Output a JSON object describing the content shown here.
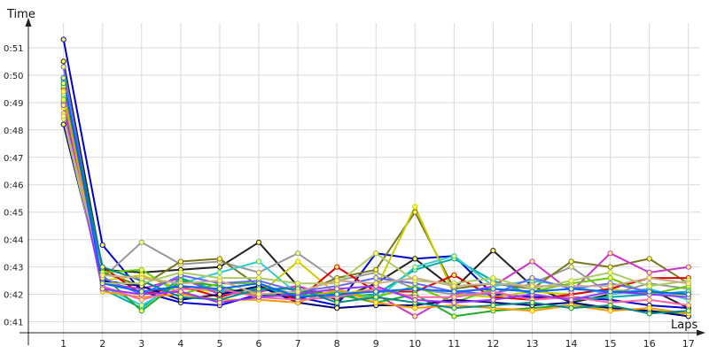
{
  "chart_data": {
    "type": "line",
    "ylabel": "Time",
    "xlabel": "Laps",
    "x": [
      1,
      2,
      3,
      4,
      5,
      6,
      7,
      8,
      9,
      10,
      11,
      12,
      13,
      14,
      15,
      16,
      17
    ],
    "x_ticks": [
      "1",
      "2",
      "3",
      "4",
      "5",
      "6",
      "7",
      "8",
      "9",
      "10",
      "11",
      "12",
      "13",
      "14",
      "15",
      "16",
      "17"
    ],
    "y_ticks": [
      {
        "v": 41,
        "label": "0:41"
      },
      {
        "v": 42,
        "label": "0:42"
      },
      {
        "v": 43,
        "label": "0:43"
      },
      {
        "v": 44,
        "label": "0:44"
      },
      {
        "v": 45,
        "label": "0:45"
      },
      {
        "v": 46,
        "label": "0:46"
      },
      {
        "v": 47,
        "label": "0:47"
      },
      {
        "v": 48,
        "label": "0:48"
      },
      {
        "v": 49,
        "label": "0:49"
      },
      {
        "v": 50,
        "label": "0:50"
      },
      {
        "v": 51,
        "label": "0:51"
      }
    ],
    "ylim": [
      40.6,
      51.9
    ],
    "xlim": [
      0.1,
      17.3
    ],
    "grid": true,
    "marker_fill": "#ffff66",
    "series": [
      {
        "color": "#0000cc",
        "values": [
          51.3,
          43.8,
          42.1,
          41.7,
          41.6,
          42.0,
          41.9,
          41.6,
          43.5,
          43.3,
          43.4,
          42.0,
          41.9,
          41.9,
          41.8,
          41.6,
          41.5
        ]
      },
      {
        "color": "#222222",
        "values": [
          50.5,
          42.9,
          42.8,
          42.9,
          43.0,
          43.9,
          42.3,
          41.8,
          42.4,
          43.3,
          42.2,
          43.6,
          42.3,
          41.7,
          42.0,
          42.2,
          41.5
        ]
      },
      {
        "color": "#999999",
        "values": [
          49.2,
          42.6,
          43.9,
          43.1,
          43.2,
          42.8,
          43.5,
          42.5,
          42.8,
          42.2,
          42.0,
          42.0,
          42.4,
          43.0,
          42.0,
          42.4,
          42.2
        ]
      },
      {
        "color": "#777722",
        "values": [
          49.0,
          42.8,
          42.3,
          43.2,
          43.3,
          42.3,
          42.0,
          42.6,
          42.9,
          45.0,
          42.2,
          42.4,
          42.2,
          43.2,
          43.0,
          43.3,
          42.4
        ]
      },
      {
        "color": "#cccc00",
        "values": [
          48.8,
          42.5,
          42.7,
          42.2,
          42.1,
          42.0,
          43.2,
          42.0,
          42.2,
          45.2,
          42.0,
          41.9,
          42.1,
          42.0,
          42.2,
          42.0,
          42.0
        ]
      },
      {
        "color": "#dd0000",
        "values": [
          49.5,
          43.0,
          42.0,
          42.3,
          41.9,
          42.3,
          41.8,
          43.0,
          42.1,
          42.1,
          42.7,
          41.9,
          41.8,
          42.0,
          42.2,
          42.6,
          42.6
        ]
      },
      {
        "color": "#cc33cc",
        "values": [
          49.0,
          42.4,
          42.2,
          42.6,
          42.0,
          42.1,
          42.3,
          41.9,
          42.0,
          41.2,
          42.0,
          42.3,
          43.2,
          42.1,
          43.5,
          42.8,
          43.0
        ]
      },
      {
        "color": "#00aaaa",
        "values": [
          49.8,
          42.2,
          41.5,
          42.6,
          42.1,
          42.2,
          42.0,
          41.9,
          42.0,
          42.9,
          43.3,
          42.5,
          42.0,
          41.8,
          41.9,
          42.0,
          42.1
        ]
      },
      {
        "color": "#33cccc",
        "values": [
          49.3,
          42.3,
          41.6,
          42.4,
          42.8,
          43.2,
          42.0,
          42.2,
          41.8,
          43.0,
          43.4,
          42.3,
          42.5,
          42.3,
          42.0,
          42.2,
          41.8
        ]
      },
      {
        "color": "#22aa22",
        "values": [
          49.6,
          42.7,
          41.4,
          42.5,
          42.3,
          41.9,
          42.1,
          42.0,
          41.7,
          42.0,
          41.2,
          41.4,
          41.5,
          41.6,
          41.5,
          41.4,
          41.3
        ]
      },
      {
        "color": "#66cc00",
        "values": [
          49.1,
          42.8,
          42.9,
          42.0,
          42.4,
          42.4,
          41.9,
          42.1,
          41.9,
          42.3,
          41.7,
          42.2,
          42.1,
          42.4,
          42.6,
          42.0,
          42.3
        ]
      },
      {
        "color": "#000077",
        "values": [
          48.2,
          42.5,
          42.3,
          41.8,
          42.0,
          42.3,
          41.7,
          41.5,
          41.6,
          41.6,
          41.8,
          41.7,
          41.6,
          41.7,
          41.5,
          41.4,
          41.2
        ]
      },
      {
        "color": "#ff9900",
        "values": [
          49.4,
          42.1,
          41.9,
          42.0,
          41.8,
          41.8,
          41.7,
          42.2,
          41.7,
          41.5,
          41.6,
          41.5,
          41.4,
          41.6,
          41.4,
          41.5,
          41.3
        ]
      },
      {
        "color": "#6666ff",
        "values": [
          50.3,
          42.6,
          42.0,
          42.7,
          42.4,
          42.5,
          42.1,
          42.3,
          42.6,
          42.4,
          42.1,
          42.0,
          42.6,
          42.2,
          42.4,
          42.1,
          42.0
        ]
      },
      {
        "color": "#ff66aa",
        "values": [
          48.6,
          42.3,
          41.8,
          42.2,
          42.2,
          41.9,
          41.8,
          41.9,
          42.2,
          41.9,
          41.9,
          42.1,
          41.8,
          41.9,
          41.7,
          41.8,
          41.6
        ]
      },
      {
        "color": "#008888",
        "values": [
          49.7,
          43.0,
          42.5,
          41.9,
          41.8,
          42.2,
          42.2,
          41.7,
          41.9,
          41.7,
          41.5,
          41.6,
          41.7,
          41.5,
          41.6,
          41.3,
          41.4
        ]
      },
      {
        "color": "#aacc66",
        "values": [
          48.4,
          42.4,
          42.4,
          42.8,
          42.6,
          42.6,
          42.4,
          42.4,
          43.5,
          42.5,
          42.4,
          42.6,
          42.2,
          42.5,
          42.8,
          42.3,
          42.5
        ]
      },
      {
        "color": "#9933ff",
        "values": [
          48.9,
          42.2,
          42.0,
          42.1,
          41.7,
          41.9,
          42.0,
          42.2,
          42.3,
          41.8,
          41.7,
          41.8,
          42.0,
          41.8,
          42.1,
          42.0,
          41.9
        ]
      },
      {
        "color": "#ccaa88",
        "values": [
          48.5,
          42.7,
          42.6,
          42.4,
          42.5,
          42.0,
          42.1,
          42.5,
          42.4,
          42.6,
          42.3,
          42.4,
          42.3,
          42.3,
          42.3,
          42.6,
          42.4
        ]
      },
      {
        "color": "#0066ff",
        "values": [
          49.9,
          42.4,
          42.1,
          42.3,
          42.2,
          42.4,
          41.9,
          42.0,
          42.1,
          42.2,
          42.1,
          42.2,
          42.1,
          42.2,
          42.1,
          42.1,
          42.0
        ]
      }
    ]
  }
}
